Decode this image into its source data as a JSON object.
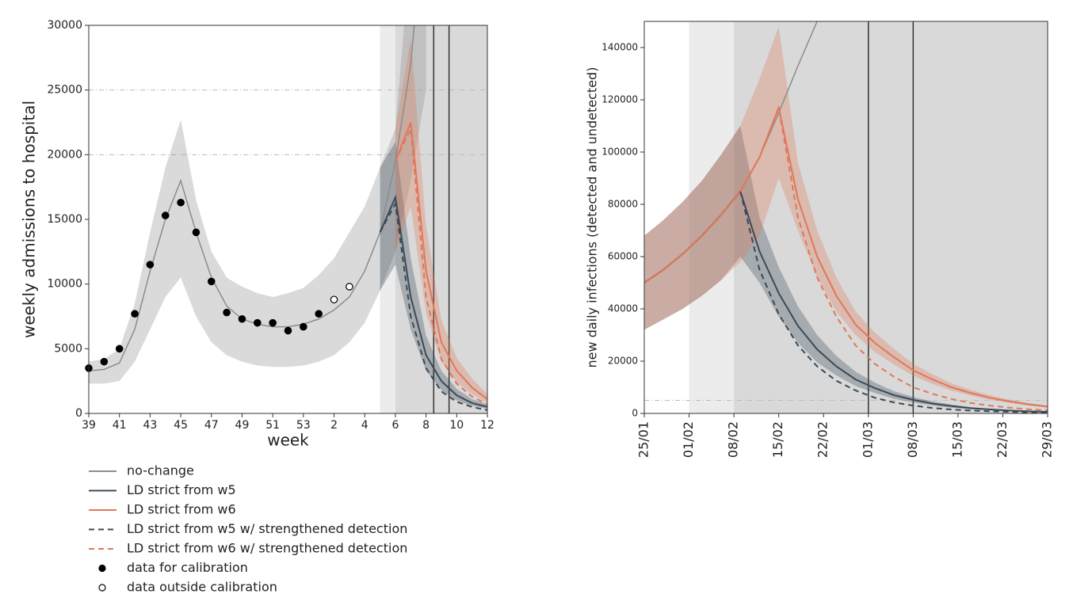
{
  "chart_data": [
    {
      "type": "line",
      "xlabel": "week",
      "ylabel": "weekly admissions to hospital",
      "categories": [
        "39",
        null,
        "41",
        null,
        "43",
        null,
        "45",
        null,
        "47",
        null,
        "49",
        null,
        "51",
        null,
        "53",
        null,
        "2",
        null,
        "4",
        null,
        "6",
        null,
        "8",
        null,
        "10",
        null,
        "12"
      ],
      "ylim": [
        0,
        30000
      ],
      "yticks": [
        0,
        5000,
        10000,
        15000,
        20000,
        25000,
        30000
      ],
      "hlines": [
        20000,
        25000
      ],
      "regions": [
        {
          "from": 19,
          "to": 20,
          "color": "#ececec"
        },
        {
          "from": 20,
          "to": 26,
          "color": "#d9d9d9"
        }
      ],
      "vlines": [
        22.5,
        23.5
      ],
      "legend": "below",
      "series": [
        {
          "name": "no-change",
          "color": "#8c8c8c",
          "style": "solid",
          "values": [
            3300,
            3400,
            3900,
            6500,
            11000,
            15000,
            18000,
            14000,
            10500,
            8300,
            7300,
            6900,
            6700,
            6700,
            6900,
            7300,
            8000,
            9000,
            11000,
            14000,
            19500,
            27000,
            40000,
            null,
            null,
            null,
            null
          ],
          "lower": [
            2300,
            2300,
            2500,
            4000,
            6500,
            9000,
            10500,
            7500,
            5500,
            4500,
            4000,
            3700,
            3600,
            3600,
            3700,
            4000,
            4500,
            5500,
            7000,
            9500,
            12500,
            18000,
            25000,
            null,
            null,
            null,
            null
          ],
          "upper": [
            4000,
            4200,
            5000,
            8500,
            14000,
            19000,
            22700,
            16500,
            12500,
            10500,
            9800,
            9300,
            9000,
            9300,
            9700,
            10700,
            12000,
            14000,
            16000,
            19000,
            22000,
            36000,
            50000,
            null,
            null,
            null,
            null
          ]
        },
        {
          "name": "LD strict from w5",
          "color": "#3b4a57",
          "style": "solid",
          "values": [
            null,
            null,
            null,
            null,
            null,
            null,
            null,
            null,
            null,
            null,
            null,
            null,
            null,
            null,
            null,
            null,
            null,
            null,
            null,
            14000,
            16700,
            9000,
            4500,
            2500,
            1400,
            800,
            500
          ],
          "lower": [
            null,
            null,
            null,
            null,
            null,
            null,
            null,
            null,
            null,
            null,
            null,
            null,
            null,
            null,
            null,
            null,
            null,
            null,
            null,
            9500,
            11500,
            6500,
            3300,
            1800,
            1000,
            600,
            350
          ],
          "upper": [
            null,
            null,
            null,
            null,
            null,
            null,
            null,
            null,
            null,
            null,
            null,
            null,
            null,
            null,
            null,
            null,
            null,
            null,
            null,
            19000,
            21000,
            12000,
            6000,
            3300,
            1900,
            1100,
            700
          ]
        },
        {
          "name": "LD strict from w6",
          "color": "#e0785a",
          "style": "solid",
          "values": [
            null,
            null,
            null,
            null,
            null,
            null,
            null,
            null,
            null,
            null,
            null,
            null,
            null,
            null,
            null,
            null,
            null,
            null,
            null,
            null,
            19500,
            22500,
            11000,
            5500,
            3300,
            2000,
            1100
          ],
          "lower": [
            null,
            null,
            null,
            null,
            null,
            null,
            null,
            null,
            null,
            null,
            null,
            null,
            null,
            null,
            null,
            null,
            null,
            null,
            null,
            null,
            12500,
            16000,
            7800,
            4000,
            2400,
            1500,
            800
          ],
          "upper": [
            null,
            null,
            null,
            null,
            null,
            null,
            null,
            null,
            null,
            null,
            null,
            null,
            null,
            null,
            null,
            null,
            null,
            null,
            null,
            null,
            22000,
            29000,
            14500,
            7200,
            4300,
            2700,
            1500
          ]
        },
        {
          "name": "LD strict from w5 w/ strengthened detection",
          "color": "#3b4a57",
          "style": "dashed",
          "values": [
            null,
            null,
            null,
            null,
            null,
            null,
            null,
            null,
            null,
            null,
            null,
            null,
            null,
            null,
            null,
            null,
            null,
            null,
            null,
            14000,
            16200,
            7500,
            3500,
            1700,
            900,
            500,
            250
          ]
        },
        {
          "name": "LD strict from w6 w/ strengthened detection",
          "color": "#e0785a",
          "style": "dashed",
          "values": [
            null,
            null,
            null,
            null,
            null,
            null,
            null,
            null,
            null,
            null,
            null,
            null,
            null,
            null,
            null,
            null,
            null,
            null,
            null,
            null,
            19500,
            22000,
            9000,
            4200,
            2300,
            1300,
            700
          ]
        },
        {
          "name": "data for calibration",
          "color": "#000000",
          "marker": "filled",
          "values": [
            3500,
            4000,
            5000,
            7700,
            11500,
            15300,
            16300,
            14000,
            10200,
            7800,
            7300,
            7000,
            7000,
            6400,
            6700,
            7700,
            null,
            null,
            null,
            null,
            null,
            null,
            null,
            null,
            null,
            null,
            null
          ]
        },
        {
          "name": "data outside calibration",
          "color": "#000000",
          "marker": "open",
          "values": [
            null,
            null,
            null,
            null,
            null,
            null,
            null,
            null,
            null,
            null,
            null,
            null,
            null,
            null,
            null,
            null,
            8800,
            9800,
            null,
            null,
            null,
            null,
            null,
            null,
            null,
            null,
            null
          ]
        }
      ]
    },
    {
      "type": "line",
      "ylabel": "new daily infections (detected and undetected)",
      "x": [
        0,
        3,
        6,
        9,
        12,
        15,
        18,
        21,
        24,
        27,
        30,
        33,
        36,
        39,
        42,
        45,
        48,
        51,
        54,
        57,
        60,
        63
      ],
      "xlim": [
        0,
        63
      ],
      "xticks": [
        {
          "value": 0,
          "label": "25/01"
        },
        {
          "value": 7,
          "label": "01/02"
        },
        {
          "value": 14,
          "label": "08/02"
        },
        {
          "value": 21,
          "label": "15/02"
        },
        {
          "value": 28,
          "label": "22/02"
        },
        {
          "value": 35,
          "label": "01/03"
        },
        {
          "value": 42,
          "label": "08/03"
        },
        {
          "value": 49,
          "label": "15/03"
        },
        {
          "value": 56,
          "label": "22/03"
        },
        {
          "value": 63,
          "label": "29/03"
        }
      ],
      "ylim": [
        0,
        150000
      ],
      "yticks": [
        0,
        20000,
        40000,
        60000,
        80000,
        100000,
        120000,
        140000
      ],
      "hlines": [
        5000
      ],
      "regions": [
        {
          "from": 7,
          "to": 14,
          "color": "#ececec"
        },
        {
          "from": 14,
          "to": 63,
          "color": "#d9d9d9"
        }
      ],
      "vlines": [
        35,
        42
      ],
      "series": [
        {
          "name": "no-change",
          "color": "#8c8c8c",
          "style": "solid",
          "values": [
            50000,
            55000,
            61000,
            68000,
            76000,
            85000,
            98000,
            115000,
            133000,
            150000,
            170000,
            null,
            null,
            null,
            null,
            null,
            null,
            null,
            null,
            null,
            null,
            null
          ]
        },
        {
          "name": "LD strict from w5",
          "color": "#3b4a57",
          "style": "solid",
          "values": [
            50000,
            55000,
            61000,
            68000,
            76000,
            85000,
            62000,
            46000,
            33500,
            24500,
            18000,
            13000,
            9700,
            7000,
            5200,
            3800,
            2800,
            2000,
            1500,
            1100,
            800,
            600
          ],
          "lower": [
            32000,
            36000,
            40000,
            45000,
            51000,
            60000,
            50000,
            37000,
            27000,
            19500,
            14500,
            10500,
            7800,
            5600,
            4200,
            3000,
            2200,
            1600,
            1200,
            900,
            650,
            500
          ],
          "upper": [
            68000,
            74000,
            81000,
            89000,
            99000,
            110000,
            75000,
            56000,
            41000,
            30000,
            22000,
            16000,
            11800,
            8500,
            6300,
            4600,
            3400,
            2400,
            1800,
            1300,
            1000,
            700
          ]
        },
        {
          "name": "LD strict from w6",
          "color": "#e0785a",
          "style": "solid",
          "values": [
            50000,
            55000,
            61000,
            68000,
            76000,
            85000,
            98000,
            117000,
            82000,
            60000,
            45000,
            34000,
            27000,
            21500,
            16500,
            13000,
            10000,
            7800,
            6000,
            4600,
            3500,
            2600
          ],
          "lower": [
            32000,
            36000,
            40000,
            45000,
            51000,
            58000,
            68000,
            90000,
            70000,
            52000,
            39000,
            30000,
            23500,
            18700,
            14400,
            11300,
            8700,
            6800,
            5200,
            4000,
            3000,
            2200
          ],
          "upper": [
            68000,
            74000,
            81000,
            89000,
            99000,
            110000,
            128000,
            148000,
            96000,
            70000,
            52000,
            39000,
            31000,
            24700,
            19000,
            15000,
            11500,
            9000,
            6900,
            5300,
            4000,
            3000
          ]
        },
        {
          "name": "LD strict from w5 w/ strengthened detection",
          "color": "#3b4a57",
          "style": "dashed",
          "values": [
            50000,
            55000,
            61000,
            68000,
            76000,
            85000,
            55000,
            38000,
            26000,
            18000,
            12500,
            8800,
            6000,
            4200,
            3000,
            2100,
            1500,
            1100,
            800,
            600,
            400,
            300
          ]
        },
        {
          "name": "LD strict from w6 w/ strengthened detection",
          "color": "#e0785a",
          "style": "dashed",
          "values": [
            50000,
            55000,
            61000,
            68000,
            76000,
            85000,
            98000,
            117000,
            75000,
            52000,
            37000,
            26000,
            19000,
            14000,
            10000,
            7500,
            5500,
            4000,
            3000,
            2200,
            1600,
            1200
          ]
        }
      ]
    }
  ]
}
